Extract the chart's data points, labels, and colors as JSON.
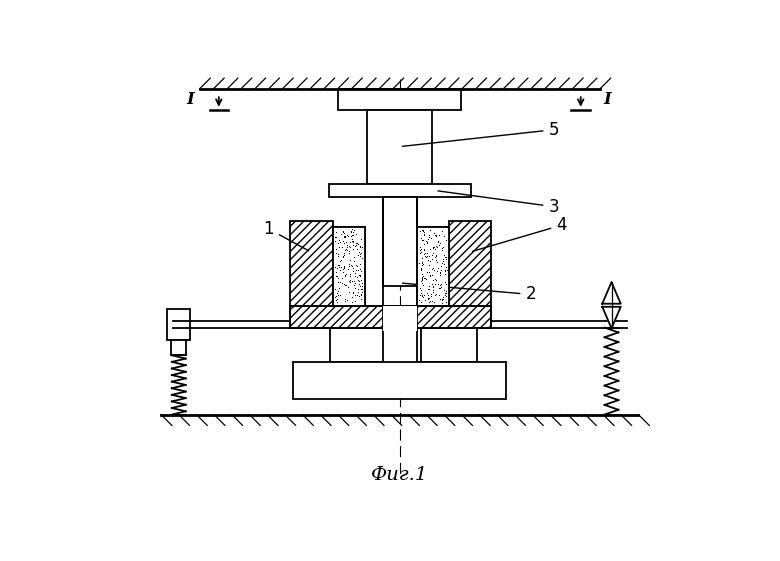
{
  "title": "Фиг.1",
  "bg_color": "#ffffff",
  "line_color": "#000000",
  "fig_width": 7.8,
  "fig_height": 5.61
}
